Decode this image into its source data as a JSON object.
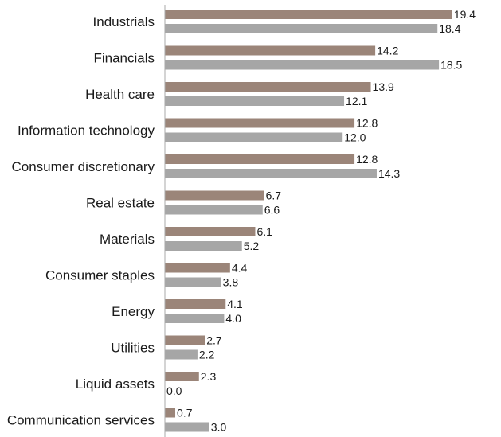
{
  "chart_data": {
    "type": "bar",
    "orientation": "horizontal",
    "categories": [
      "Industrials",
      "Financials",
      "Health care",
      "Information technology",
      "Consumer discretionary",
      "Real estate",
      "Materials",
      "Consumer staples",
      "Energy",
      "Utilities",
      "Liquid assets",
      "Communication services"
    ],
    "series": [
      {
        "color": "#9b8579",
        "values": [
          19.4,
          14.2,
          13.9,
          12.8,
          12.8,
          6.7,
          6.1,
          4.4,
          4.1,
          2.7,
          2.3,
          0.7
        ],
        "labels": [
          "19.4",
          "14.2",
          "13.9",
          "12.8",
          "12.8",
          "6.7",
          "6.1",
          "4.4",
          "4.1",
          "2.7",
          "2.3",
          "0.7"
        ]
      },
      {
        "color": "#a6a6a6",
        "values": [
          18.4,
          18.5,
          12.1,
          12.0,
          14.3,
          6.6,
          5.2,
          3.8,
          4.0,
          2.2,
          0.0,
          3.0
        ],
        "labels": [
          "18.4",
          "18.5",
          "12.1",
          "12.0",
          "14.3",
          "6.6",
          "5.2",
          "3.8",
          "4.0",
          "2.2",
          "0.0",
          "3.0"
        ]
      }
    ],
    "xlim": [
      0,
      20
    ],
    "grid": false,
    "legend": "none",
    "title": "",
    "xlabel": "",
    "ylabel": ""
  }
}
